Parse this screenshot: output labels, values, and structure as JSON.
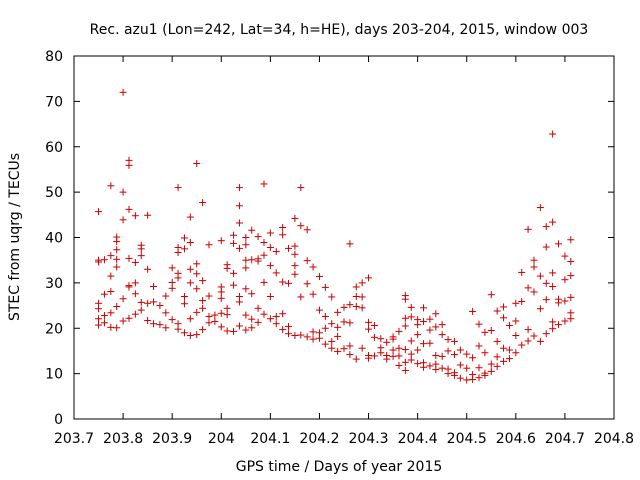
{
  "chart_data": {
    "type": "scatter",
    "title": "Rec. azu1 (Lon=242, Lat=34, h=HE), days 203-204, 2015, window 003",
    "xlabel": "GPS time / Days of year 2015",
    "ylabel": "STEC from uqrg / TECUs",
    "xlim": [
      203.7,
      204.8
    ],
    "ylim": [
      0,
      80
    ],
    "x_ticks": [
      203.7,
      203.8,
      203.9,
      204.0,
      204.1,
      204.2,
      204.3,
      204.4,
      204.5,
      204.6,
      204.7,
      204.8
    ],
    "x_tick_labels": [
      "203.7",
      "203.8",
      "203.9",
      "204",
      "204.1",
      "204.2",
      "204.3",
      "204.4",
      "204.5",
      "204.6",
      "204.7",
      "204.8"
    ],
    "y_ticks": [
      0,
      10,
      20,
      30,
      40,
      50,
      60,
      70,
      80
    ],
    "y_tick_labels": [
      "0",
      "10",
      "20",
      "30",
      "40",
      "50",
      "60",
      "70",
      "80"
    ],
    "grid": false,
    "marker": "+",
    "marker_color": "#cc0000",
    "points": [
      [
        203.75,
        45.7
      ],
      [
        203.75,
        35.0
      ],
      [
        203.75,
        34.6
      ],
      [
        203.75,
        25.5
      ],
      [
        203.75,
        24.3
      ],
      [
        203.75,
        22.1
      ],
      [
        203.75,
        20.7
      ],
      [
        203.762,
        35.1
      ],
      [
        203.762,
        27.5
      ],
      [
        203.762,
        22.8
      ],
      [
        203.762,
        21.2
      ],
      [
        203.775,
        51.4
      ],
      [
        203.775,
        36.0
      ],
      [
        203.775,
        31.5
      ],
      [
        203.775,
        28.1
      ],
      [
        203.775,
        23.4
      ],
      [
        203.775,
        20.2
      ],
      [
        203.787,
        40.1
      ],
      [
        203.787,
        39.1
      ],
      [
        203.787,
        37.3
      ],
      [
        203.787,
        35.2
      ],
      [
        203.787,
        33.5
      ],
      [
        203.787,
        24.8
      ],
      [
        203.787,
        20.1
      ],
      [
        203.8,
        72.0
      ],
      [
        203.8,
        50.0
      ],
      [
        203.8,
        43.9
      ],
      [
        203.8,
        26.5
      ],
      [
        203.8,
        21.6
      ],
      [
        203.812,
        57.0
      ],
      [
        203.812,
        55.9
      ],
      [
        203.812,
        46.2
      ],
      [
        203.812,
        35.4
      ],
      [
        203.812,
        29.4
      ],
      [
        203.812,
        29.1
      ],
      [
        203.812,
        22.2
      ],
      [
        203.825,
        44.8
      ],
      [
        203.825,
        34.5
      ],
      [
        203.825,
        30.0
      ],
      [
        203.825,
        27.6
      ],
      [
        203.825,
        23.1
      ],
      [
        203.837,
        38.3
      ],
      [
        203.837,
        37.5
      ],
      [
        203.837,
        36.0
      ],
      [
        203.837,
        25.7
      ],
      [
        203.837,
        24.0
      ],
      [
        203.85,
        44.9
      ],
      [
        203.85,
        33.0
      ],
      [
        203.85,
        25.5
      ],
      [
        203.85,
        21.7
      ],
      [
        203.862,
        29.2
      ],
      [
        203.862,
        25.8
      ],
      [
        203.862,
        21.0
      ],
      [
        203.875,
        25.0
      ],
      [
        203.875,
        20.8
      ],
      [
        203.887,
        27.1
      ],
      [
        203.887,
        23.4
      ],
      [
        203.887,
        20.1
      ],
      [
        203.9,
        30.1
      ],
      [
        203.9,
        33.3
      ],
      [
        203.9,
        28.8
      ],
      [
        203.9,
        21.9
      ],
      [
        203.912,
        51.0
      ],
      [
        203.912,
        37.8
      ],
      [
        203.912,
        36.7
      ],
      [
        203.912,
        32.1
      ],
      [
        203.912,
        31.1
      ],
      [
        203.912,
        21.0
      ],
      [
        203.912,
        19.8
      ],
      [
        203.925,
        39.9
      ],
      [
        203.925,
        37.5
      ],
      [
        203.925,
        27.0
      ],
      [
        203.925,
        25.4
      ],
      [
        203.925,
        19.0
      ],
      [
        203.937,
        44.5
      ],
      [
        203.937,
        38.9
      ],
      [
        203.937,
        33.0
      ],
      [
        203.937,
        30.0
      ],
      [
        203.937,
        22.1
      ],
      [
        203.937,
        18.4
      ],
      [
        203.95,
        56.3
      ],
      [
        203.95,
        34.2
      ],
      [
        203.95,
        32.0
      ],
      [
        203.95,
        28.7
      ],
      [
        203.95,
        23.5
      ],
      [
        203.95,
        18.6
      ],
      [
        203.962,
        47.7
      ],
      [
        203.962,
        30.5
      ],
      [
        203.962,
        26.1
      ],
      [
        203.962,
        24.4
      ],
      [
        203.962,
        19.7
      ],
      [
        203.975,
        38.4
      ],
      [
        203.975,
        27.1
      ],
      [
        203.975,
        22.6
      ],
      [
        203.975,
        21.2
      ],
      [
        203.987,
        22.9
      ],
      [
        203.987,
        21.5
      ],
      [
        204.0,
        39.3
      ],
      [
        204.0,
        29.1
      ],
      [
        204.0,
        28.0
      ],
      [
        204.0,
        26.6
      ],
      [
        204.0,
        23.3
      ],
      [
        204.0,
        20.3
      ],
      [
        204.012,
        34.0
      ],
      [
        204.012,
        33.2
      ],
      [
        204.012,
        24.4
      ],
      [
        204.012,
        23.0
      ],
      [
        204.012,
        19.4
      ],
      [
        204.025,
        40.5
      ],
      [
        204.025,
        38.7
      ],
      [
        204.025,
        32.1
      ],
      [
        204.025,
        29.5
      ],
      [
        204.025,
        19.3
      ],
      [
        204.037,
        51.0
      ],
      [
        204.037,
        47.0
      ],
      [
        204.037,
        43.2
      ],
      [
        204.037,
        37.6
      ],
      [
        204.037,
        27.0
      ],
      [
        204.037,
        25.8
      ],
      [
        204.037,
        20.5
      ],
      [
        204.05,
        40.0
      ],
      [
        204.05,
        38.4
      ],
      [
        204.05,
        35.0
      ],
      [
        204.05,
        33.3
      ],
      [
        204.05,
        28.7
      ],
      [
        204.05,
        22.9
      ],
      [
        204.05,
        19.6
      ],
      [
        204.062,
        41.6
      ],
      [
        204.062,
        35.1
      ],
      [
        204.062,
        27.6
      ],
      [
        204.062,
        22.0
      ],
      [
        204.062,
        20.1
      ],
      [
        204.075,
        40.2
      ],
      [
        204.075,
        35.3
      ],
      [
        204.075,
        34.8
      ],
      [
        204.075,
        24.4
      ],
      [
        204.075,
        21.3
      ],
      [
        204.087,
        51.8
      ],
      [
        204.087,
        38.9
      ],
      [
        204.087,
        36.1
      ],
      [
        204.087,
        30.1
      ],
      [
        204.087,
        23.1
      ],
      [
        204.1,
        41.0
      ],
      [
        204.1,
        37.8
      ],
      [
        204.1,
        33.8
      ],
      [
        204.1,
        27.0
      ],
      [
        204.1,
        22.1
      ],
      [
        204.112,
        36.9
      ],
      [
        204.112,
        32.2
      ],
      [
        204.112,
        22.6
      ],
      [
        204.112,
        21.0
      ],
      [
        204.125,
        42.2
      ],
      [
        204.125,
        40.6
      ],
      [
        204.125,
        30.2
      ],
      [
        204.125,
        23.2
      ],
      [
        204.125,
        19.7
      ],
      [
        204.137,
        37.6
      ],
      [
        204.137,
        29.9
      ],
      [
        204.137,
        20.4
      ],
      [
        204.137,
        18.8
      ],
      [
        204.15,
        44.2
      ],
      [
        204.15,
        38.1
      ],
      [
        204.15,
        36.3
      ],
      [
        204.15,
        33.8
      ],
      [
        204.15,
        31.9
      ],
      [
        204.15,
        18.4
      ],
      [
        204.162,
        51.0
      ],
      [
        204.162,
        42.6
      ],
      [
        204.162,
        26.9
      ],
      [
        204.162,
        18.5
      ],
      [
        204.175,
        41.7
      ],
      [
        204.175,
        34.9
      ],
      [
        204.175,
        29.8
      ],
      [
        204.175,
        18.1
      ],
      [
        204.187,
        33.5
      ],
      [
        204.187,
        27.5
      ],
      [
        204.187,
        19.2
      ],
      [
        204.187,
        17.6
      ],
      [
        204.2,
        31.4
      ],
      [
        204.2,
        24.0
      ],
      [
        204.2,
        19.0
      ],
      [
        204.2,
        17.8
      ],
      [
        204.212,
        29.0
      ],
      [
        204.212,
        22.6
      ],
      [
        204.212,
        20.0
      ],
      [
        204.212,
        16.5
      ],
      [
        204.225,
        26.9
      ],
      [
        204.225,
        21.0
      ],
      [
        204.225,
        17.1
      ],
      [
        204.225,
        15.6
      ],
      [
        204.237,
        23.5
      ],
      [
        204.237,
        20.2
      ],
      [
        204.237,
        18.2
      ],
      [
        204.237,
        14.9
      ],
      [
        204.25,
        24.6
      ],
      [
        204.25,
        21.4
      ],
      [
        204.25,
        15.5
      ],
      [
        204.262,
        38.6
      ],
      [
        204.262,
        25.2
      ],
      [
        204.262,
        21.2
      ],
      [
        204.262,
        16.1
      ],
      [
        204.262,
        14.2
      ],
      [
        204.275,
        29.1
      ],
      [
        204.275,
        27.0
      ],
      [
        204.275,
        24.8
      ],
      [
        204.275,
        13.2
      ],
      [
        204.287,
        30.0
      ],
      [
        204.287,
        26.9
      ],
      [
        204.287,
        24.5
      ],
      [
        204.287,
        15.6
      ],
      [
        204.3,
        31.1
      ],
      [
        204.3,
        21.3
      ],
      [
        204.3,
        19.8
      ],
      [
        204.3,
        14.0
      ],
      [
        204.3,
        13.4
      ],
      [
        204.312,
        20.6
      ],
      [
        204.312,
        18.0
      ],
      [
        204.312,
        13.9
      ],
      [
        204.325,
        17.7
      ],
      [
        204.325,
        15.7
      ],
      [
        204.325,
        14.6
      ],
      [
        204.337,
        16.9
      ],
      [
        204.337,
        14.0
      ],
      [
        204.337,
        13.2
      ],
      [
        204.35,
        18.1
      ],
      [
        204.35,
        17.6
      ],
      [
        204.35,
        15.2
      ],
      [
        204.35,
        13.8
      ],
      [
        204.362,
        19.3
      ],
      [
        204.362,
        15.6
      ],
      [
        204.362,
        13.9
      ],
      [
        204.362,
        11.8
      ],
      [
        204.375,
        27.2
      ],
      [
        204.375,
        26.4
      ],
      [
        204.375,
        22.2
      ],
      [
        204.375,
        20.5
      ],
      [
        204.375,
        15.3
      ],
      [
        204.375,
        12.5
      ],
      [
        204.375,
        10.7
      ],
      [
        204.387,
        24.6
      ],
      [
        204.387,
        22.5
      ],
      [
        204.387,
        17.2
      ],
      [
        204.387,
        14.3
      ],
      [
        204.387,
        13.0
      ],
      [
        204.4,
        21.9
      ],
      [
        204.4,
        20.8
      ],
      [
        204.4,
        18.6
      ],
      [
        204.4,
        15.2
      ],
      [
        204.4,
        12.2
      ],
      [
        204.412,
        24.5
      ],
      [
        204.412,
        21.5
      ],
      [
        204.412,
        16.6
      ],
      [
        204.412,
        12.4
      ],
      [
        204.412,
        11.4
      ],
      [
        204.425,
        22.0
      ],
      [
        204.425,
        19.6
      ],
      [
        204.425,
        16.7
      ],
      [
        204.425,
        11.7
      ],
      [
        204.437,
        23.2
      ],
      [
        204.437,
        20.3
      ],
      [
        204.437,
        14.0
      ],
      [
        204.437,
        12.1
      ],
      [
        204.437,
        10.9
      ],
      [
        204.45,
        20.8
      ],
      [
        204.45,
        18.6
      ],
      [
        204.45,
        13.8
      ],
      [
        204.45,
        11.2
      ],
      [
        204.462,
        17.5
      ],
      [
        204.462,
        15.0
      ],
      [
        204.462,
        11.0
      ],
      [
        204.462,
        10.0
      ],
      [
        204.475,
        17.1
      ],
      [
        204.475,
        14.2
      ],
      [
        204.475,
        10.2
      ],
      [
        204.475,
        9.6
      ],
      [
        204.487,
        15.2
      ],
      [
        204.487,
        11.9
      ],
      [
        204.487,
        9.0
      ],
      [
        204.5,
        14.3
      ],
      [
        204.5,
        11.2
      ],
      [
        204.5,
        8.6
      ],
      [
        204.512,
        23.7
      ],
      [
        204.512,
        13.5
      ],
      [
        204.512,
        9.8
      ],
      [
        204.512,
        8.7
      ],
      [
        204.525,
        20.9
      ],
      [
        204.525,
        16.1
      ],
      [
        204.525,
        11.3
      ],
      [
        204.525,
        9.1
      ],
      [
        204.537,
        19.1
      ],
      [
        204.537,
        14.6
      ],
      [
        204.537,
        10.1
      ],
      [
        204.537,
        9.6
      ],
      [
        204.55,
        27.4
      ],
      [
        204.55,
        19.5
      ],
      [
        204.55,
        12.1
      ],
      [
        204.55,
        10.5
      ],
      [
        204.562,
        23.8
      ],
      [
        204.562,
        17.1
      ],
      [
        204.562,
        13.7
      ],
      [
        204.562,
        11.6
      ],
      [
        204.575,
        24.7
      ],
      [
        204.575,
        22.3
      ],
      [
        204.575,
        15.6
      ],
      [
        204.575,
        12.7
      ],
      [
        204.587,
        20.6
      ],
      [
        204.587,
        15.2
      ],
      [
        204.587,
        13.3
      ],
      [
        204.6,
        25.5
      ],
      [
        204.6,
        21.6
      ],
      [
        204.6,
        18.4
      ],
      [
        204.6,
        14.6
      ],
      [
        204.612,
        32.3
      ],
      [
        204.612,
        25.9
      ],
      [
        204.612,
        16.3
      ],
      [
        204.625,
        41.8
      ],
      [
        204.625,
        28.9
      ],
      [
        204.625,
        19.7
      ],
      [
        204.625,
        17.2
      ],
      [
        204.637,
        35.0
      ],
      [
        204.637,
        33.5
      ],
      [
        204.637,
        28.0
      ],
      [
        204.637,
        18.3
      ],
      [
        204.65,
        46.6
      ],
      [
        204.65,
        31.5
      ],
      [
        204.65,
        24.3
      ],
      [
        204.65,
        17.1
      ],
      [
        204.662,
        42.4
      ],
      [
        204.662,
        37.9
      ],
      [
        204.662,
        29.9
      ],
      [
        204.662,
        26.3
      ],
      [
        204.662,
        18.8
      ],
      [
        204.675,
        62.8
      ],
      [
        204.675,
        43.4
      ],
      [
        204.675,
        32.2
      ],
      [
        204.675,
        29.2
      ],
      [
        204.675,
        21.4
      ],
      [
        204.675,
        19.9
      ],
      [
        204.687,
        38.6
      ],
      [
        204.687,
        26.4
      ],
      [
        204.687,
        25.6
      ],
      [
        204.687,
        20.8
      ],
      [
        204.7,
        35.9
      ],
      [
        204.7,
        30.7
      ],
      [
        204.7,
        26.0
      ],
      [
        204.7,
        21.6
      ],
      [
        204.712,
        39.5
      ],
      [
        204.712,
        34.7
      ],
      [
        204.712,
        31.6
      ],
      [
        204.712,
        26.8
      ],
      [
        204.712,
        23.4
      ],
      [
        204.712,
        22.1
      ]
    ]
  }
}
